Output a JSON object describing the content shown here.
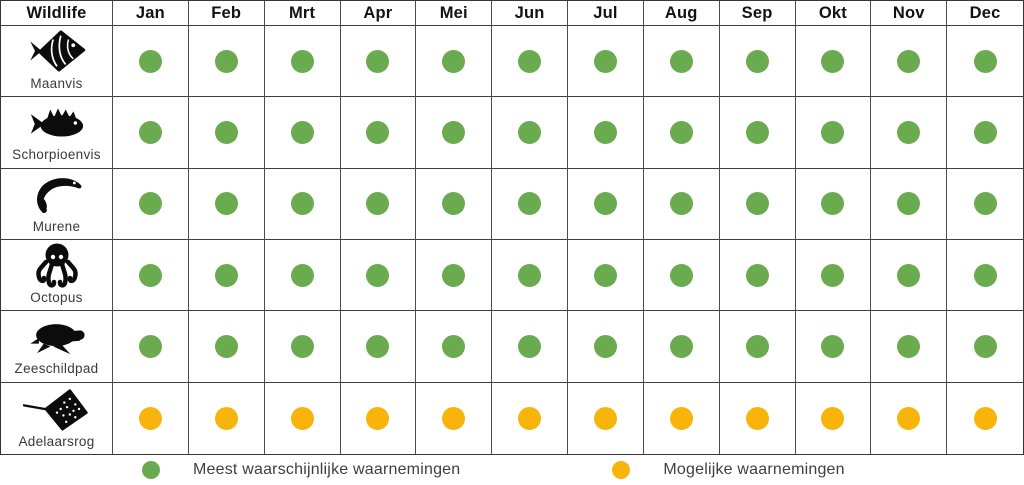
{
  "chart_data": {
    "type": "table",
    "columns": [
      "Wildlife",
      "Jan",
      "Feb",
      "Mrt",
      "Apr",
      "Mei",
      "Jun",
      "Jul",
      "Aug",
      "Sep",
      "Okt",
      "Nov",
      "Dec"
    ],
    "rows": [
      {
        "label": "Maanvis",
        "icon": "angelfish-icon",
        "values": [
          "most",
          "most",
          "most",
          "most",
          "most",
          "most",
          "most",
          "most",
          "most",
          "most",
          "most",
          "most"
        ]
      },
      {
        "label": "Schorpioenvis",
        "icon": "scorpionfish-icon",
        "values": [
          "most",
          "most",
          "most",
          "most",
          "most",
          "most",
          "most",
          "most",
          "most",
          "most",
          "most",
          "most"
        ]
      },
      {
        "label": "Murene",
        "icon": "moray-eel-icon",
        "values": [
          "most",
          "most",
          "most",
          "most",
          "most",
          "most",
          "most",
          "most",
          "most",
          "most",
          "most",
          "most"
        ]
      },
      {
        "label": "Octopus",
        "icon": "octopus-icon",
        "values": [
          "most",
          "most",
          "most",
          "most",
          "most",
          "most",
          "most",
          "most",
          "most",
          "most",
          "most",
          "most"
        ]
      },
      {
        "label": "Zeeschildpad",
        "icon": "sea-turtle-icon",
        "values": [
          "most",
          "most",
          "most",
          "most",
          "most",
          "most",
          "most",
          "most",
          "most",
          "most",
          "most",
          "most"
        ]
      },
      {
        "label": "Adelaarsrog",
        "icon": "eagle-ray-icon",
        "values": [
          "possible",
          "possible",
          "possible",
          "possible",
          "possible",
          "possible",
          "possible",
          "possible",
          "possible",
          "possible",
          "possible",
          "possible"
        ]
      }
    ],
    "legend": [
      {
        "label": "Meest waarschijnlijke waarnemingen",
        "value": "most",
        "color": "#6BAB4F"
      },
      {
        "label": "Mogelijke waarnemingen",
        "value": "possible",
        "color": "#F8B40B"
      }
    ]
  },
  "colors": {
    "most": "#6BAB4F",
    "possible": "#F8B40B",
    "border": "#3d3d3d",
    "header_text": "#121212",
    "label_text": "#3a3a3a"
  }
}
